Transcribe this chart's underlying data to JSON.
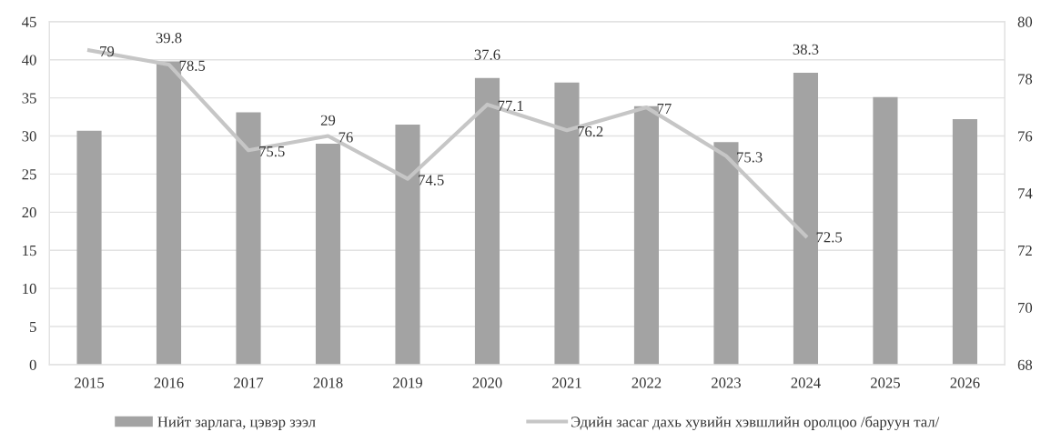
{
  "chart_data": {
    "type": "bar",
    "categories": [
      "2015",
      "2016",
      "2017",
      "2018",
      "2019",
      "2020",
      "2021",
      "2022",
      "2023",
      "2024",
      "2025",
      "2026"
    ],
    "series": [
      {
        "name": "Нийт зарлага, цэвэр зээл",
        "color": "#a3a3a3",
        "values": [
          30.7,
          39.8,
          33.1,
          29,
          31.5,
          37.6,
          37.0,
          33.9,
          29.2,
          38.3,
          35.1,
          32.2
        ],
        "value_labels": [
          null,
          "39.8",
          null,
          "29",
          null,
          "37.6",
          null,
          null,
          null,
          "38.3",
          null,
          null
        ]
      },
      {
        "name": "Эдийн засаг дахь хувийн хэвшлийн оролцоо /баруун тал/",
        "type": "line",
        "axis": "y2",
        "color": "#c6c6c6",
        "values": [
          79,
          78.5,
          75.5,
          76,
          74.5,
          77.1,
          76.2,
          77,
          75.3,
          72.5,
          null,
          null
        ],
        "value_labels": [
          "79",
          "78.5",
          "75.5",
          "76",
          "74.5",
          "77.1",
          "76.2",
          "77",
          "75.3",
          "72.5",
          null,
          null
        ]
      }
    ],
    "ylim": [
      0,
      45
    ],
    "yticks": [
      0,
      5,
      10,
      15,
      20,
      25,
      30,
      35,
      40,
      45
    ],
    "y2lim": [
      68,
      80
    ],
    "y2ticks": [
      68,
      70,
      72,
      74,
      76,
      78,
      80
    ],
    "grid": "y",
    "legend": "bottom"
  }
}
